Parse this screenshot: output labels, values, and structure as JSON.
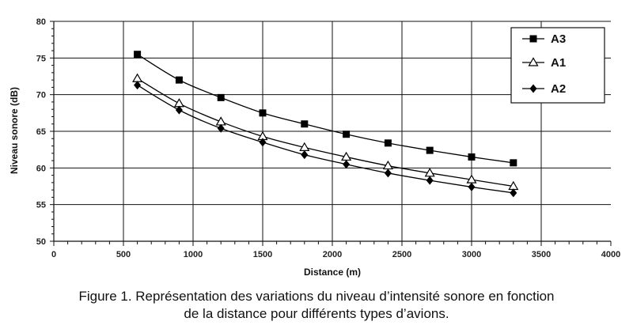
{
  "chart_data": {
    "type": "line",
    "xlabel": "Distance (m)",
    "ylabel": "Niveau sonore (dB)",
    "xlim": [
      0,
      4000
    ],
    "ylim": [
      50,
      80
    ],
    "x_ticks": [
      "0",
      "500",
      "1000",
      "1500",
      "2000",
      "2500",
      "3000",
      "3500",
      "4000"
    ],
    "y_ticks": [
      "50",
      "55",
      "60",
      "65",
      "70",
      "75",
      "80"
    ],
    "grid": true,
    "legend_position": "top-right",
    "x": [
      600,
      900,
      1200,
      1500,
      1800,
      2100,
      2400,
      2700,
      3000,
      3300
    ],
    "series": [
      {
        "name": "A3",
        "marker": "square",
        "values": [
          75.5,
          72.0,
          69.6,
          67.5,
          66.0,
          64.6,
          63.4,
          62.4,
          61.5,
          60.7
        ]
      },
      {
        "name": "A1",
        "marker": "triangle-open",
        "values": [
          72.2,
          68.8,
          66.3,
          64.3,
          62.8,
          61.5,
          60.3,
          59.3,
          58.4,
          57.5
        ]
      },
      {
        "name": "A2",
        "marker": "diamond",
        "values": [
          71.3,
          67.9,
          65.4,
          63.5,
          61.8,
          60.5,
          59.3,
          58.3,
          57.4,
          56.6
        ]
      }
    ]
  },
  "caption": {
    "line1": "Figure 1. Représentation des variations du niveau d’intensité sonore en fonction",
    "line2": "de la distance pour différents types d’avions."
  }
}
